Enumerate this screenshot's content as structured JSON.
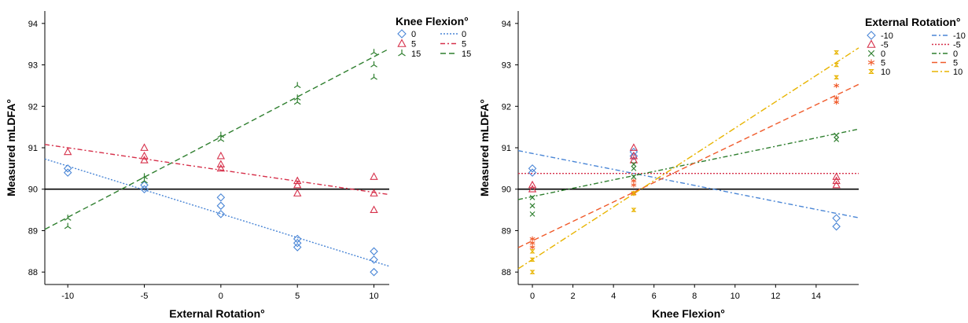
{
  "chart_data": [
    {
      "type": "scatter",
      "xlabel": "External Rotation°",
      "ylabel": "Measured mLDFA°",
      "xlim": [
        -11.5,
        11
      ],
      "ylim": [
        87.7,
        94.3
      ],
      "xticks": [
        "-10",
        "-5",
        "0",
        "5",
        "10"
      ],
      "xtick_values": [
        -10,
        -5,
        0,
        5,
        10
      ],
      "yticks": [
        "88",
        "89",
        "90",
        "91",
        "92",
        "93",
        "94"
      ],
      "ytick_values": [
        88,
        89,
        90,
        91,
        92,
        93,
        94
      ],
      "reference_line": 90,
      "legend_title": "Knee Flexion°",
      "legend_placement": "top-right",
      "series": [
        {
          "name": "0",
          "marker": "diamond",
          "color": "#4a86d6",
          "points": [
            [
              -10,
              90.5
            ],
            [
              -10,
              90.4
            ],
            [
              -5,
              90.1
            ],
            [
              -5,
              90.0
            ],
            [
              0,
              89.8
            ],
            [
              0,
              89.6
            ],
            [
              0,
              89.4
            ],
            [
              5,
              88.8
            ],
            [
              5,
              88.7
            ],
            [
              5,
              88.6
            ],
            [
              10,
              88.5
            ],
            [
              10,
              88.3
            ],
            [
              10,
              88.0
            ]
          ],
          "fit": [
            [
              -11.5,
              90.73
            ],
            [
              11,
              88.14
            ]
          ],
          "dash": "2,2"
        },
        {
          "name": "5",
          "marker": "triangle",
          "color": "#d6304a",
          "points": [
            [
              -10,
              90.9
            ],
            [
              -5,
              91.0
            ],
            [
              -5,
              90.8
            ],
            [
              -5,
              90.7
            ],
            [
              0,
              90.8
            ],
            [
              0,
              90.6
            ],
            [
              0,
              90.5
            ],
            [
              5,
              90.2
            ],
            [
              5,
              90.1
            ],
            [
              5,
              89.9
            ],
            [
              10,
              90.3
            ],
            [
              10,
              89.9
            ],
            [
              10,
              89.5
            ]
          ],
          "fit": [
            [
              -11.5,
              91.08
            ],
            [
              11,
              89.87
            ]
          ],
          "dash": "6,3,2,3"
        },
        {
          "name": "15",
          "marker": "tri",
          "color": "#2f7f2f",
          "points": [
            [
              -10,
              89.3
            ],
            [
              -10,
              89.1
            ],
            [
              -5,
              90.3
            ],
            [
              -5,
              90.2
            ],
            [
              0,
              91.3
            ],
            [
              0,
              91.2
            ],
            [
              5,
              92.5
            ],
            [
              5,
              92.2
            ],
            [
              5,
              92.1
            ],
            [
              10,
              93.3
            ],
            [
              10,
              93.0
            ],
            [
              10,
              92.7
            ]
          ],
          "fit": [
            [
              -11.5,
              89.03
            ],
            [
              11,
              93.39
            ]
          ],
          "dash": "7,4"
        }
      ]
    },
    {
      "type": "scatter",
      "xlabel": "Knee Flexion°",
      "ylabel": "Measured mLDFA°",
      "xlim": [
        -0.7,
        16.1
      ],
      "ylim": [
        87.7,
        94.3
      ],
      "xticks": [
        "0",
        "2",
        "4",
        "6",
        "8",
        "10",
        "12",
        "14"
      ],
      "xtick_values": [
        0,
        2,
        4,
        6,
        8,
        10,
        12,
        14
      ],
      "yticks": [
        "88",
        "89",
        "90",
        "91",
        "92",
        "93",
        "94"
      ],
      "ytick_values": [
        88,
        89,
        90,
        91,
        92,
        93,
        94
      ],
      "reference_line": 90,
      "legend_title": "External Rotation°",
      "legend_placement": "top-right",
      "series": [
        {
          "name": "-10",
          "marker": "diamond",
          "color": "#4a86d6",
          "points": [
            [
              0,
              90.5
            ],
            [
              0,
              90.4
            ],
            [
              5,
              90.9
            ],
            [
              5,
              90.8
            ],
            [
              15,
              89.3
            ],
            [
              15,
              89.1
            ]
          ],
          "fit": [
            [
              -0.7,
              90.93
            ],
            [
              16.1,
              89.31
            ]
          ],
          "dash": "6,3,2,3"
        },
        {
          "name": "-5",
          "marker": "triangle",
          "color": "#d6304a",
          "points": [
            [
              0,
              90.1
            ],
            [
              0,
              90.0
            ],
            [
              5,
              91.0
            ],
            [
              5,
              90.8
            ],
            [
              5,
              90.7
            ],
            [
              15,
              90.3
            ],
            [
              15,
              90.2
            ],
            [
              15,
              90.1
            ]
          ],
          "fit": [
            [
              -0.7,
              90.38
            ],
            [
              16.1,
              90.38
            ]
          ],
          "dash": "2,2"
        },
        {
          "name": "0",
          "marker": "x",
          "color": "#2f7f2f",
          "points": [
            [
              0,
              89.8
            ],
            [
              0,
              89.6
            ],
            [
              0,
              89.4
            ],
            [
              5,
              90.6
            ],
            [
              5,
              90.5
            ],
            [
              5,
              90.3
            ],
            [
              15,
              91.3
            ],
            [
              15,
              91.2
            ]
          ],
          "fit": [
            [
              -0.7,
              89.75
            ],
            [
              16.1,
              91.45
            ]
          ],
          "dash": "6,3,2,3"
        },
        {
          "name": "5",
          "marker": "asterisk",
          "color": "#f05a2a",
          "points": [
            [
              0,
              88.8
            ],
            [
              0,
              88.7
            ],
            [
              0,
              88.6
            ],
            [
              5,
              90.2
            ],
            [
              5,
              90.1
            ],
            [
              5,
              89.9
            ],
            [
              15,
              92.5
            ],
            [
              15,
              92.2
            ],
            [
              15,
              92.1
            ]
          ],
          "fit": [
            [
              -0.7,
              88.59
            ],
            [
              16.1,
              92.53
            ]
          ],
          "dash": "7,4"
        },
        {
          "name": "10",
          "marker": "hourglass",
          "color": "#e8b400",
          "points": [
            [
              0,
              88.5
            ],
            [
              0,
              88.3
            ],
            [
              0,
              88.0
            ],
            [
              5,
              89.9
            ],
            [
              5,
              89.5
            ],
            [
              15,
              93.3
            ],
            [
              15,
              93.0
            ],
            [
              15,
              92.7
            ]
          ],
          "fit": [
            [
              -0.7,
              88.08
            ],
            [
              16.1,
              93.41
            ]
          ],
          "dash": "8,3,2,3"
        }
      ]
    }
  ]
}
